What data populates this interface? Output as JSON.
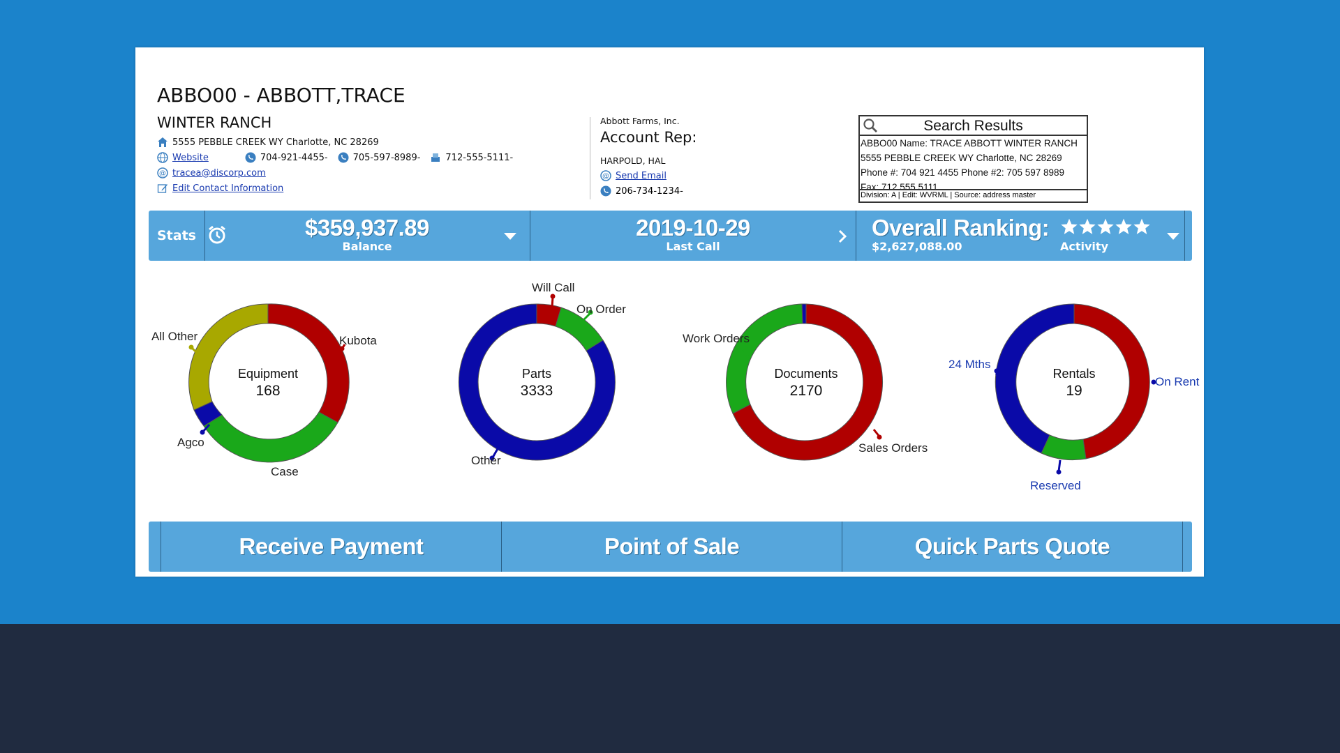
{
  "colors": {
    "page_bg": "#1b83cb",
    "bottom_band": "#202b40",
    "bar": "#56a6dc",
    "red": "#b00000",
    "green": "#1aa81a",
    "blue": "#0a0aa8",
    "olive": "#a8a800",
    "link": "#1a3bb0"
  },
  "header": {
    "title": "ABBO00 - ABBOTT,TRACE",
    "subtitle": "WINTER RANCH",
    "address": "5555 PEBBLE CREEK WY Charlotte, NC 28269",
    "website_label": "Website",
    "phone1": "704-921-4455-",
    "phone2": "705-597-8989-",
    "phone3": "712-555-5111-",
    "email": "tracea@discorp.com",
    "edit_contact": "Edit Contact Information",
    "icons": [
      "home-icon",
      "globe-icon",
      "phone-icon",
      "fax-icon",
      "email-icon",
      "edit-icon"
    ]
  },
  "rep": {
    "company": "Abbott Farms, Inc.",
    "title": "Account Rep:",
    "name": "HARPOLD, HAL",
    "send_email": "Send Email",
    "phone": "206-734-1234-"
  },
  "search_results": {
    "title": "Search Results",
    "lines": [
      "ABBO00 Name: TRACE ABBOTT WINTER RANCH",
      "5555 PEBBLE CREEK WY Charlotte, NC 28269",
      "Phone #: 704 921 4455 Phone #2: 705 597 8989",
      "Fax: 712 555 5111"
    ],
    "footer": "Division: A | Edit: WVRML | Source: address master"
  },
  "stats": {
    "label": "Stats",
    "balance_value": "$359,937.89",
    "balance_label": "Balance",
    "last_call_value": "2019-10-29",
    "last_call_label": "Last Call",
    "ranking_title": "Overall Ranking:",
    "ranking_value": "$2,627,088.00",
    "activity_label": "Activity",
    "activity_stars": 5
  },
  "charts": [
    {
      "name": "Equipment",
      "total": "168",
      "labels": [
        "Kubota",
        "Case",
        "Agco",
        "All Other"
      ]
    },
    {
      "name": "Parts",
      "total": "3333",
      "labels": [
        "Will Call",
        "On Order",
        "Other"
      ]
    },
    {
      "name": "Documents",
      "total": "2170",
      "labels": [
        "Work Orders",
        "Sales Orders"
      ]
    },
    {
      "name": "Rentals",
      "total": "19",
      "labels": [
        "24 Mths",
        "On Rent",
        "Reserved"
      ]
    }
  ],
  "actions": {
    "receive_payment": "Receive Payment",
    "point_of_sale": "Point of Sale",
    "quick_parts_quote": "Quick Parts Quote"
  }
}
